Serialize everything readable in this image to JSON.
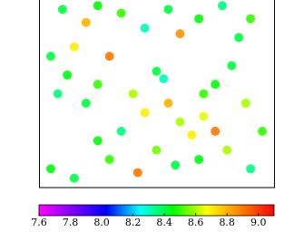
{
  "chart_data": {
    "type": "scatter",
    "xlim": [
      0,
      1
    ],
    "ylim": [
      0,
      1
    ],
    "x": [
      0.1,
      0.25,
      0.35,
      0.55,
      0.68,
      0.78,
      0.9,
      0.45,
      0.2,
      0.6,
      0.15,
      0.05,
      0.12,
      0.08,
      0.2,
      0.25,
      0.5,
      0.53,
      0.4,
      0.45,
      0.55,
      0.6,
      0.7,
      0.75,
      0.82,
      0.88,
      0.7,
      0.65,
      0.05,
      0.15,
      0.3,
      0.35,
      0.25,
      0.5,
      0.58,
      0.68,
      0.8,
      0.9,
      0.95,
      0.42,
      0.75,
      0.3,
      0.85
    ],
    "y": [
      0.95,
      0.97,
      0.93,
      0.95,
      0.9,
      0.97,
      0.9,
      0.85,
      0.88,
      0.82,
      0.75,
      0.7,
      0.6,
      0.5,
      0.45,
      0.55,
      0.62,
      0.58,
      0.5,
      0.4,
      0.45,
      0.35,
      0.5,
      0.55,
      0.65,
      0.45,
      0.38,
      0.28,
      0.1,
      0.05,
      0.15,
      0.3,
      0.25,
      0.2,
      0.12,
      0.15,
      0.2,
      0.1,
      0.3,
      0.08,
      0.3,
      0.7,
      0.8
    ],
    "values": [
      8.4,
      8.45,
      8.5,
      8.4,
      8.45,
      8.35,
      8.5,
      8.3,
      8.8,
      8.85,
      8.7,
      8.4,
      8.45,
      8.35,
      8.4,
      8.5,
      8.4,
      8.3,
      8.6,
      8.7,
      8.8,
      8.6,
      8.5,
      8.45,
      8.4,
      8.6,
      8.65,
      8.7,
      8.45,
      8.4,
      8.5,
      8.35,
      8.45,
      8.55,
      8.4,
      8.45,
      8.6,
      8.35,
      8.5,
      8.9,
      8.9,
      8.9,
      8.4
    ],
    "clim": [
      7.6,
      9.1
    ],
    "colormap": [
      "#ff00ff",
      "#8000ff",
      "#0000ff",
      "#00ffff",
      "#00ff00",
      "#ffff00",
      "#ff8000",
      "#ff0000"
    ],
    "cticks": [
      7.6,
      7.8,
      {
        "value": 8,
        "label": "8.0"
      },
      8.2,
      8.4,
      8.6,
      8.8,
      {
        "value": 9,
        "label": "9.0"
      }
    ]
  }
}
